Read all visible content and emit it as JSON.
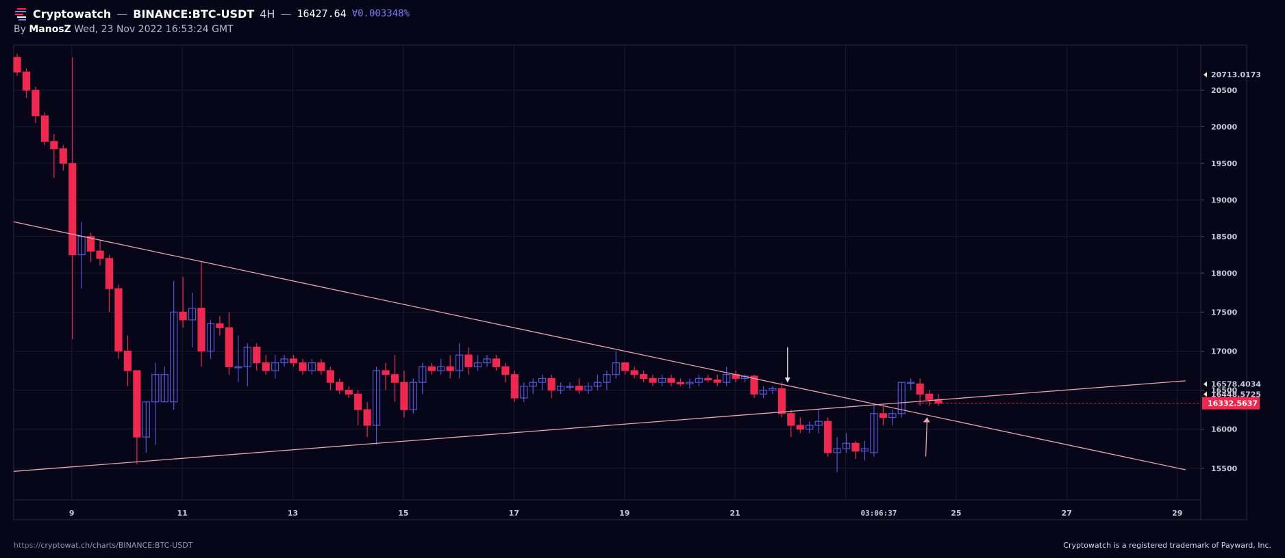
{
  "header": {
    "brand": "Cryptowatch",
    "separator": "—",
    "pair": "BINANCE:BTC-USDT",
    "timeframe": "4H",
    "separator2": "—",
    "price": "16427.64",
    "change": "∀0.003348%"
  },
  "subheader": {
    "by_label": "By",
    "author": "ManosZ",
    "timestamp": "Wed, 23 Nov 2022 16:53:24 GMT"
  },
  "footer": {
    "url_prefix": "https://",
    "url_rest": "cryptowat.ch/charts/BINANCE:BTC-USDT",
    "trademark": "Cryptowatch is a registered trademark of Payward, Inc."
  },
  "colors": {
    "background": "#070618",
    "bull": "#5656d8",
    "bear": "#f0284f",
    "grid": "#1b1a33",
    "trendline": "#e6a7ad",
    "axis_text": "#c8c8d8"
  },
  "chart_data": {
    "type": "candlestick",
    "interval": "4H",
    "x_tick_labels": [
      "9",
      "11",
      "13",
      "15",
      "17",
      "19",
      "21",
      "25",
      "27",
      "29"
    ],
    "x_tick_days": [
      9,
      11,
      13,
      15,
      17,
      19,
      21,
      25,
      27,
      29
    ],
    "crosshair_time_label": "03:06:37",
    "y_tick_labels": [
      "20500",
      "20000",
      "19500",
      "19000",
      "18500",
      "18000",
      "17500",
      "17000",
      "16500",
      "16000",
      "15500"
    ],
    "y_tick_values": [
      20500,
      20000,
      19500,
      19000,
      18500,
      18000,
      17500,
      17000,
      16500,
      16000,
      15500
    ],
    "price_markers": [
      {
        "label": "20713.0173",
        "value": 20713.0173
      },
      {
        "label": "16578.4034",
        "value": 16578.4034
      },
      {
        "label": "16448.5725",
        "value": 16448.5725
      }
    ],
    "current_price": {
      "label": "16332.5637",
      "value": 16332.5637
    },
    "ohlc": [
      [
        20950,
        21000,
        20700,
        20750
      ],
      [
        20750,
        20800,
        20400,
        20500
      ],
      [
        20500,
        20550,
        20050,
        20150
      ],
      [
        20150,
        20200,
        19750,
        19800
      ],
      [
        19800,
        19900,
        19300,
        19700
      ],
      [
        19700,
        19750,
        19400,
        19500
      ],
      [
        19500,
        20950,
        17150,
        18250
      ],
      [
        18250,
        18700,
        17800,
        18500
      ],
      [
        18500,
        18550,
        18150,
        18300
      ],
      [
        18300,
        18450,
        18100,
        18200
      ],
      [
        18200,
        18250,
        17500,
        17800
      ],
      [
        17800,
        17850,
        16900,
        17000
      ],
      [
        17000,
        17200,
        16550,
        16750
      ],
      [
        16750,
        16750,
        15550,
        15900
      ],
      [
        15900,
        16350,
        15700,
        16350
      ],
      [
        16350,
        16850,
        15800,
        16700
      ],
      [
        16350,
        16800,
        16350,
        16700
      ],
      [
        16350,
        17900,
        16250,
        17500
      ],
      [
        17500,
        17950,
        17300,
        17400
      ],
      [
        17400,
        17750,
        17050,
        17550
      ],
      [
        17550,
        18150,
        16800,
        17000
      ],
      [
        17000,
        17400,
        16900,
        17350
      ],
      [
        17350,
        17450,
        17200,
        17300
      ],
      [
        17300,
        17500,
        16700,
        16800
      ],
      [
        16800,
        17200,
        16600,
        16800
      ],
      [
        16800,
        17100,
        16550,
        17050
      ],
      [
        17050,
        17100,
        16750,
        16850
      ],
      [
        16850,
        16950,
        16700,
        16750
      ],
      [
        16750,
        16950,
        16650,
        16850
      ],
      [
        16850,
        16950,
        16800,
        16900
      ],
      [
        16900,
        16950,
        16800,
        16850
      ],
      [
        16850,
        16900,
        16700,
        16750
      ],
      [
        16750,
        16900,
        16700,
        16850
      ],
      [
        16850,
        16900,
        16700,
        16750
      ],
      [
        16750,
        16800,
        16500,
        16600
      ],
      [
        16600,
        16650,
        16450,
        16500
      ],
      [
        16500,
        16550,
        16400,
        16450
      ],
      [
        16450,
        16500,
        16050,
        16250
      ],
      [
        16250,
        16350,
        15900,
        16050
      ],
      [
        16050,
        16800,
        15800,
        16750
      ],
      [
        16750,
        16850,
        16500,
        16700
      ],
      [
        16700,
        16950,
        16350,
        16600
      ],
      [
        16600,
        16750,
        16150,
        16250
      ],
      [
        16250,
        16650,
        16200,
        16600
      ],
      [
        16600,
        16850,
        16450,
        16800
      ],
      [
        16800,
        16850,
        16700,
        16750
      ],
      [
        16750,
        16900,
        16700,
        16800
      ],
      [
        16800,
        16950,
        16650,
        16750
      ],
      [
        16750,
        17100,
        16650,
        16950
      ],
      [
        16950,
        17050,
        16700,
        16800
      ],
      [
        16800,
        16950,
        16750,
        16850
      ],
      [
        16850,
        16950,
        16800,
        16900
      ],
      [
        16900,
        16950,
        16750,
        16800
      ],
      [
        16800,
        16850,
        16600,
        16700
      ],
      [
        16700,
        16750,
        16350,
        16400
      ],
      [
        16400,
        16600,
        16350,
        16550
      ],
      [
        16550,
        16650,
        16450,
        16600
      ],
      [
        16600,
        16700,
        16500,
        16650
      ],
      [
        16650,
        16700,
        16400,
        16500
      ],
      [
        16500,
        16600,
        16450,
        16550
      ],
      [
        16550,
        16600,
        16500,
        16550
      ],
      [
        16550,
        16650,
        16450,
        16500
      ],
      [
        16500,
        16600,
        16450,
        16550
      ],
      [
        16550,
        16700,
        16500,
        16600
      ],
      [
        16600,
        16750,
        16500,
        16700
      ],
      [
        16700,
        17000,
        16650,
        16850
      ],
      [
        16850,
        16850,
        16700,
        16750
      ],
      [
        16750,
        16800,
        16650,
        16700
      ],
      [
        16700,
        16750,
        16600,
        16650
      ],
      [
        16650,
        16700,
        16550,
        16600
      ],
      [
        16600,
        16700,
        16550,
        16650
      ],
      [
        16650,
        16700,
        16550,
        16600
      ],
      [
        16600,
        16650,
        16550,
        16580
      ],
      [
        16580,
        16650,
        16520,
        16600
      ],
      [
        16600,
        16700,
        16550,
        16650
      ],
      [
        16650,
        16700,
        16600,
        16630
      ],
      [
        16630,
        16700,
        16550,
        16600
      ],
      [
        16600,
        16800,
        16550,
        16700
      ],
      [
        16700,
        16750,
        16600,
        16650
      ],
      [
        16650,
        16700,
        16600,
        16680
      ],
      [
        16680,
        16700,
        16400,
        16450
      ],
      [
        16450,
        16550,
        16400,
        16500
      ],
      [
        16500,
        16550,
        16450,
        16520
      ],
      [
        16520,
        16600,
        16150,
        16200
      ],
      [
        16200,
        16250,
        15900,
        16050
      ],
      [
        16050,
        16150,
        15950,
        16000
      ],
      [
        16000,
        16100,
        15950,
        16050
      ],
      [
        16050,
        16250,
        15950,
        16100
      ],
      [
        16100,
        16150,
        15650,
        15700
      ],
      [
        15700,
        15900,
        15450,
        15750
      ],
      [
        15750,
        15950,
        15700,
        15820
      ],
      [
        15820,
        15850,
        15620,
        15720
      ],
      [
        15720,
        15850,
        15600,
        15750
      ],
      [
        15700,
        16300,
        15650,
        16200
      ],
      [
        16200,
        16300,
        16050,
        16150
      ],
      [
        16150,
        16250,
        16050,
        16200
      ],
      [
        16200,
        16600,
        16150,
        16600
      ],
      [
        16600,
        16650,
        16500,
        16600
      ],
      [
        16580,
        16650,
        16300,
        16450
      ],
      [
        16450,
        16500,
        16300,
        16380
      ],
      [
        16380,
        16450,
        16300,
        16333
      ]
    ],
    "trendlines": [
      {
        "name": "descending",
        "start": {
          "day": 7.95,
          "price": 18700
        },
        "end": {
          "day": 29.15,
          "price": 15480
        }
      },
      {
        "name": "ascending",
        "start": {
          "day": 7.95,
          "price": 15460
        },
        "end": {
          "day": 29.15,
          "price": 16620
        }
      }
    ],
    "arrows": [
      {
        "direction": "down",
        "day": 21.95,
        "price_from": 17050,
        "price_to": 16600
      },
      {
        "direction": "up",
        "day": 24.45,
        "price_from": 15650,
        "price_to": 16150
      }
    ],
    "dashed_price_line": 16332.5637
  }
}
